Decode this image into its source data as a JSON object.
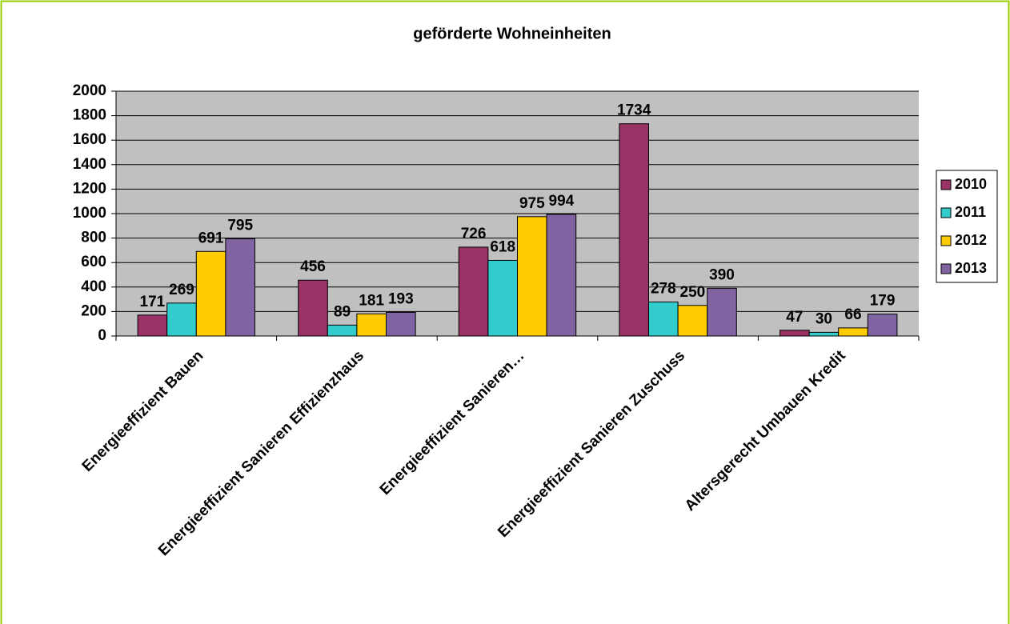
{
  "chart_data": {
    "type": "bar",
    "title": "geförderte Wohneinheiten",
    "categories": [
      "Energieeffizient Bauen",
      "Energieeffizient Sanieren Effizienzhaus",
      "Energieeffizient Sanieren…",
      "Energieeffizient Sanieren Zuschuss",
      "Altersgerecht Umbauen Kredit"
    ],
    "series": [
      {
        "name": "2010",
        "color": "#993366",
        "values": [
          171,
          456,
          726,
          1734,
          47
        ]
      },
      {
        "name": "2011",
        "color": "#33cccc",
        "values": [
          269,
          89,
          618,
          278,
          30
        ]
      },
      {
        "name": "2012",
        "color": "#ffcc00",
        "values": [
          691,
          181,
          975,
          250,
          66
        ]
      },
      {
        "name": "2013",
        "color": "#8064a2",
        "values": [
          795,
          193,
          994,
          390,
          179
        ]
      }
    ],
    "ylim": [
      0,
      2000
    ],
    "yticks": [
      0,
      200,
      400,
      600,
      800,
      1000,
      1200,
      1400,
      1600,
      1800,
      2000
    ],
    "grid": true,
    "legend": "right"
  }
}
